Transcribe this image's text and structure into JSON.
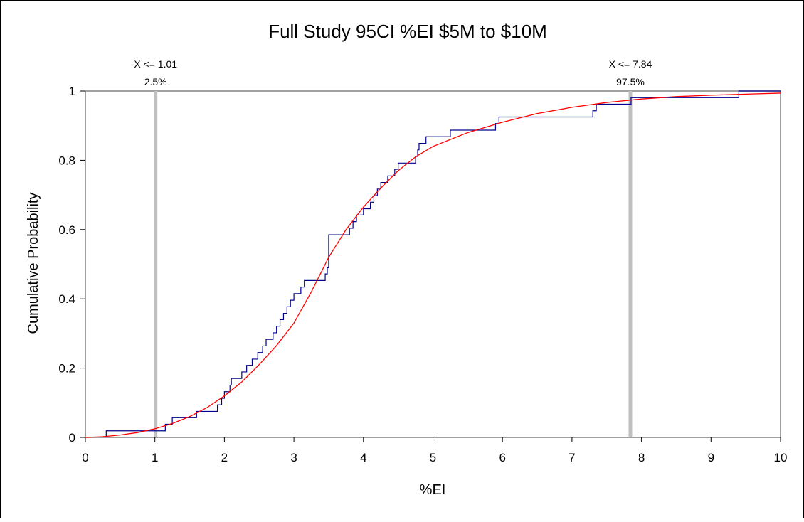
{
  "chart_data": {
    "type": "line",
    "title": "Full Study 95CI %EI  $5M to $10M",
    "xlabel": "%EI",
    "ylabel": "Cumulative Probability",
    "xlim": [
      0,
      10
    ],
    "ylim": [
      0,
      1
    ],
    "x_ticks": [
      0,
      1,
      2,
      3,
      4,
      5,
      6,
      7,
      8,
      9,
      10
    ],
    "y_ticks": [
      0,
      0.2,
      0.4,
      0.6,
      0.8,
      1
    ],
    "x_tick_labels": [
      "0",
      "1",
      "2",
      "3",
      "4",
      "5",
      "6",
      "7",
      "8",
      "9",
      "10"
    ],
    "y_tick_labels": [
      "0",
      "0.2",
      "0.4",
      "0.6",
      "0.8",
      "1"
    ],
    "grid": false,
    "colors": {
      "empirical": "#00008b",
      "fitted": "#ff0000",
      "marker": "#c0c0c0"
    },
    "markers": [
      {
        "x": 1.01,
        "label_top": "X <= 1.01",
        "label_bottom": "2.5%"
      },
      {
        "x": 7.84,
        "label_top": "X <= 7.84",
        "label_bottom": "97.5%"
      }
    ],
    "series": [
      {
        "kind": "step",
        "color": "#00008b",
        "points": [
          [
            0.3,
            0
          ],
          [
            0.3,
            0.019
          ],
          [
            1.15,
            0.019
          ],
          [
            1.15,
            0.038
          ],
          [
            1.25,
            0.038
          ],
          [
            1.25,
            0.057
          ],
          [
            1.6,
            0.057
          ],
          [
            1.6,
            0.075
          ],
          [
            1.9,
            0.075
          ],
          [
            1.9,
            0.094
          ],
          [
            1.96,
            0.094
          ],
          [
            1.96,
            0.113
          ],
          [
            2.0,
            0.113
          ],
          [
            2.0,
            0.132
          ],
          [
            2.08,
            0.132
          ],
          [
            2.08,
            0.151
          ],
          [
            2.1,
            0.151
          ],
          [
            2.1,
            0.17
          ],
          [
            2.25,
            0.17
          ],
          [
            2.25,
            0.189
          ],
          [
            2.32,
            0.189
          ],
          [
            2.32,
            0.208
          ],
          [
            2.4,
            0.208
          ],
          [
            2.4,
            0.226
          ],
          [
            2.48,
            0.226
          ],
          [
            2.48,
            0.245
          ],
          [
            2.55,
            0.245
          ],
          [
            2.55,
            0.264
          ],
          [
            2.6,
            0.264
          ],
          [
            2.6,
            0.283
          ],
          [
            2.7,
            0.283
          ],
          [
            2.7,
            0.302
          ],
          [
            2.75,
            0.302
          ],
          [
            2.75,
            0.321
          ],
          [
            2.8,
            0.321
          ],
          [
            2.8,
            0.34
          ],
          [
            2.85,
            0.34
          ],
          [
            2.85,
            0.358
          ],
          [
            2.9,
            0.358
          ],
          [
            2.9,
            0.377
          ],
          [
            2.95,
            0.377
          ],
          [
            2.95,
            0.396
          ],
          [
            3.0,
            0.396
          ],
          [
            3.0,
            0.415
          ],
          [
            3.1,
            0.415
          ],
          [
            3.1,
            0.434
          ],
          [
            3.15,
            0.434
          ],
          [
            3.15,
            0.453
          ],
          [
            3.45,
            0.453
          ],
          [
            3.45,
            0.472
          ],
          [
            3.48,
            0.472
          ],
          [
            3.48,
            0.49
          ],
          [
            3.5,
            0.49
          ],
          [
            3.5,
            0.585
          ],
          [
            3.8,
            0.585
          ],
          [
            3.8,
            0.604
          ],
          [
            3.85,
            0.604
          ],
          [
            3.85,
            0.623
          ],
          [
            3.9,
            0.623
          ],
          [
            3.9,
            0.642
          ],
          [
            4.0,
            0.642
          ],
          [
            4.0,
            0.66
          ],
          [
            4.1,
            0.66
          ],
          [
            4.1,
            0.679
          ],
          [
            4.15,
            0.679
          ],
          [
            4.15,
            0.698
          ],
          [
            4.2,
            0.698
          ],
          [
            4.2,
            0.717
          ],
          [
            4.25,
            0.717
          ],
          [
            4.25,
            0.736
          ],
          [
            4.35,
            0.736
          ],
          [
            4.35,
            0.755
          ],
          [
            4.45,
            0.755
          ],
          [
            4.45,
            0.774
          ],
          [
            4.5,
            0.774
          ],
          [
            4.5,
            0.792
          ],
          [
            4.75,
            0.792
          ],
          [
            4.75,
            0.811
          ],
          [
            4.78,
            0.811
          ],
          [
            4.78,
            0.83
          ],
          [
            4.8,
            0.83
          ],
          [
            4.8,
            0.849
          ],
          [
            4.9,
            0.849
          ],
          [
            4.9,
            0.868
          ],
          [
            5.25,
            0.868
          ],
          [
            5.25,
            0.887
          ],
          [
            5.9,
            0.887
          ],
          [
            5.9,
            0.906
          ],
          [
            5.95,
            0.906
          ],
          [
            5.95,
            0.925
          ],
          [
            7.3,
            0.925
          ],
          [
            7.3,
            0.943
          ],
          [
            7.35,
            0.943
          ],
          [
            7.35,
            0.962
          ],
          [
            7.85,
            0.962
          ],
          [
            7.85,
            0.981
          ],
          [
            9.4,
            0.981
          ],
          [
            9.4,
            1.0
          ],
          [
            10.0,
            1.0
          ]
        ]
      },
      {
        "kind": "curve",
        "color": "#ff0000",
        "points": [
          [
            0,
            0
          ],
          [
            0.25,
            0.002
          ],
          [
            0.5,
            0.007
          ],
          [
            0.75,
            0.014
          ],
          [
            1.0,
            0.025
          ],
          [
            1.25,
            0.04
          ],
          [
            1.5,
            0.06
          ],
          [
            1.75,
            0.086
          ],
          [
            2.0,
            0.12
          ],
          [
            2.25,
            0.16
          ],
          [
            2.5,
            0.21
          ],
          [
            2.75,
            0.265
          ],
          [
            3.0,
            0.33
          ],
          [
            3.25,
            0.42
          ],
          [
            3.5,
            0.52
          ],
          [
            3.75,
            0.6
          ],
          [
            4.0,
            0.665
          ],
          [
            4.25,
            0.72
          ],
          [
            4.5,
            0.77
          ],
          [
            4.75,
            0.81
          ],
          [
            5.0,
            0.84
          ],
          [
            5.5,
            0.88
          ],
          [
            6.0,
            0.91
          ],
          [
            6.5,
            0.935
          ],
          [
            7.0,
            0.953
          ],
          [
            7.5,
            0.967
          ],
          [
            8.0,
            0.977
          ],
          [
            8.5,
            0.984
          ],
          [
            9.0,
            0.988
          ],
          [
            9.5,
            0.991
          ],
          [
            10.0,
            0.994
          ]
        ]
      }
    ]
  }
}
